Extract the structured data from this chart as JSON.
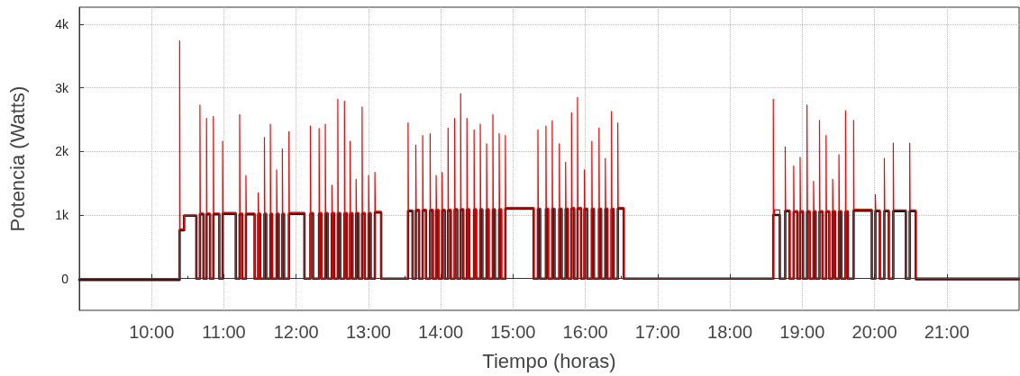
{
  "chart_data": {
    "type": "step",
    "xlabel": "Tiempo (horas)",
    "ylabel": "Potencia (Watts)",
    "xlim": [
      9,
      22
    ],
    "ylim": [
      -500,
      4270
    ],
    "xticks": [
      {
        "value": 10,
        "label": "10:00"
      },
      {
        "value": 11,
        "label": "11:00"
      },
      {
        "value": 12,
        "label": "12:00"
      },
      {
        "value": 13,
        "label": "13:00"
      },
      {
        "value": 14,
        "label": "14:00"
      },
      {
        "value": 15,
        "label": "15:00"
      },
      {
        "value": 16,
        "label": "16:00"
      },
      {
        "value": 17,
        "label": "17:00"
      },
      {
        "value": 18,
        "label": "18:00"
      },
      {
        "value": 19,
        "label": "19:00"
      },
      {
        "value": 20,
        "label": "20:00"
      },
      {
        "value": 21,
        "label": "21:00"
      }
    ],
    "yticks": [
      0,
      {
        "value": 1000,
        "label": "1k"
      },
      {
        "value": 2000,
        "label": "2k"
      },
      {
        "value": 3000,
        "label": "3k"
      },
      {
        "value": 4000,
        "label": "4k"
      }
    ],
    "grid": true,
    "marker": "none",
    "line_style": "solid",
    "series": [
      {
        "color": "#008000",
        "x": [
          9.0,
          10.388,
          10.39,
          20.57,
          22.0
        ],
        "values": [
          -25,
          -25,
          null,
          -25,
          -25
        ]
      },
      {
        "color": "#1a1a1a",
        "x": [
          9.0,
          10.388,
          10.45,
          10.619,
          10.669,
          10.718,
          10.76,
          10.809,
          10.855,
          10.937,
          10.983,
          11.165,
          11.218,
          11.255,
          11.305,
          11.425,
          11.475,
          11.503,
          11.561,
          11.586,
          11.643,
          11.668,
          11.73,
          11.759,
          11.809,
          11.833,
          11.9,
          12.114,
          12.197,
          12.234,
          12.317,
          12.349,
          12.403,
          12.435,
          12.494,
          12.527,
          12.576,
          12.609,
          12.668,
          12.701,
          12.746,
          12.779,
          12.829,
          12.862,
          12.912,
          12.949,
          13.002,
          13.031,
          13.089,
          13.176,
          13.548,
          13.61,
          13.655,
          13.7,
          13.75,
          13.796,
          13.853,
          13.891,
          13.936,
          13.969,
          14.019,
          14.056,
          14.101,
          14.139,
          14.192,
          14.229,
          14.275,
          14.312,
          14.362,
          14.394,
          14.461,
          14.49,
          14.547,
          14.576,
          14.634,
          14.663,
          14.721,
          14.75,
          14.808,
          14.837,
          14.894,
          15.285,
          15.344,
          15.375,
          15.455,
          15.486,
          15.542,
          15.574,
          15.64,
          15.673,
          15.727,
          15.759,
          15.809,
          15.846,
          15.892,
          15.941,
          15.987,
          16.025,
          16.09,
          16.119,
          16.189,
          16.219,
          16.276,
          16.305,
          16.362,
          16.392,
          16.449,
          16.531,
          18.6,
          18.69,
          18.765,
          18.826,
          18.882,
          18.932,
          18.971,
          19.012,
          19.066,
          19.103,
          19.157,
          19.186,
          19.239,
          19.281,
          19.33,
          19.375,
          19.421,
          19.455,
          19.508,
          19.541,
          19.599,
          19.632,
          19.711,
          19.962,
          20.012,
          20.074,
          20.136,
          20.198,
          20.26,
          20.434,
          20.487,
          20.57,
          22.0
        ],
        "values": [
          -20,
          760,
          990,
          0,
          1010,
          0,
          1010,
          0,
          1010,
          0,
          1020,
          0,
          1010,
          0,
          1010,
          0,
          1010,
          0,
          1010,
          0,
          1010,
          0,
          1010,
          0,
          1010,
          0,
          1020,
          0,
          1020,
          0,
          1020,
          0,
          1020,
          0,
          1020,
          0,
          1020,
          0,
          1020,
          0,
          1020,
          0,
          1020,
          0,
          1020,
          0,
          1020,
          0,
          1040,
          0,
          1060,
          0,
          1070,
          0,
          1070,
          0,
          1070,
          0,
          1070,
          0,
          1070,
          0,
          1070,
          0,
          1080,
          0,
          1080,
          0,
          1080,
          0,
          1080,
          0,
          1080,
          0,
          1080,
          0,
          1080,
          0,
          1080,
          0,
          1100,
          0,
          1090,
          0,
          1090,
          0,
          1090,
          0,
          1090,
          0,
          1090,
          0,
          1100,
          0,
          1100,
          0,
          1090,
          0,
          1090,
          0,
          1090,
          0,
          1090,
          0,
          1090,
          0,
          1100,
          0,
          1000,
          0,
          1060,
          0,
          1050,
          0,
          1050,
          0,
          1050,
          0,
          1050,
          0,
          1050,
          0,
          1050,
          0,
          1050,
          0,
          1050,
          0,
          1050,
          0,
          1070,
          0,
          1060,
          0,
          1060,
          0,
          1060,
          0,
          1060,
          0,
          0
        ]
      },
      {
        "color": "#ff0000",
        "x": [
          9.0,
          10.388,
          10.394,
          10.45,
          10.619,
          10.669,
          10.675,
          10.718,
          10.76,
          10.766,
          10.809,
          10.855,
          10.861,
          10.937,
          10.983,
          10.989,
          11.165,
          11.218,
          11.224,
          11.255,
          11.305,
          11.311,
          11.425,
          11.475,
          11.481,
          11.503,
          11.561,
          11.567,
          11.586,
          11.643,
          11.649,
          11.668,
          11.73,
          11.736,
          11.759,
          11.809,
          11.815,
          11.833,
          11.9,
          11.906,
          12.114,
          12.197,
          12.203,
          12.234,
          12.317,
          12.323,
          12.349,
          12.403,
          12.409,
          12.435,
          12.494,
          12.5,
          12.527,
          12.576,
          12.582,
          12.609,
          12.668,
          12.674,
          12.701,
          12.746,
          12.752,
          12.779,
          12.829,
          12.835,
          12.862,
          12.912,
          12.918,
          12.949,
          13.002,
          13.008,
          13.031,
          13.089,
          13.095,
          13.176,
          13.548,
          13.554,
          13.61,
          13.655,
          13.661,
          13.7,
          13.75,
          13.756,
          13.796,
          13.853,
          13.859,
          13.891,
          13.936,
          13.942,
          13.969,
          14.019,
          14.025,
          14.056,
          14.101,
          14.107,
          14.139,
          14.192,
          14.198,
          14.229,
          14.275,
          14.281,
          14.312,
          14.362,
          14.368,
          14.394,
          14.461,
          14.467,
          14.49,
          14.547,
          14.553,
          14.576,
          14.634,
          14.64,
          14.663,
          14.721,
          14.727,
          14.75,
          14.808,
          14.814,
          14.837,
          14.894,
          14.9,
          15.285,
          15.344,
          15.35,
          15.375,
          15.455,
          15.461,
          15.486,
          15.542,
          15.548,
          15.574,
          15.64,
          15.646,
          15.673,
          15.727,
          15.733,
          15.759,
          15.809,
          15.815,
          15.846,
          15.892,
          15.898,
          15.941,
          15.987,
          15.993,
          16.025,
          16.09,
          16.096,
          16.119,
          16.189,
          16.195,
          16.219,
          16.276,
          16.282,
          16.305,
          16.362,
          16.368,
          16.392,
          16.449,
          16.455,
          16.531,
          18.6,
          18.606,
          18.62,
          18.69,
          18.765,
          18.771,
          18.826,
          18.882,
          18.888,
          18.932,
          18.971,
          18.977,
          19.012,
          19.066,
          19.072,
          19.103,
          19.157,
          19.163,
          19.186,
          19.239,
          19.245,
          19.281,
          19.33,
          19.336,
          19.375,
          19.421,
          19.427,
          19.455,
          19.508,
          19.514,
          19.541,
          19.599,
          19.605,
          19.632,
          19.711,
          19.717,
          19.962,
          20.012,
          20.018,
          20.074,
          20.136,
          20.142,
          20.198,
          20.26,
          20.266,
          20.434,
          20.487,
          20.493,
          20.57,
          22.0
        ],
        "values": [
          0,
          3740,
          780,
          1000,
          0,
          2730,
          1030,
          0,
          2520,
          1030,
          0,
          2550,
          1030,
          0,
          2160,
          1040,
          0,
          2580,
          1030,
          0,
          1620,
          1030,
          0,
          1350,
          1030,
          0,
          2220,
          1030,
          0,
          2430,
          1030,
          0,
          1710,
          1030,
          0,
          2040,
          1030,
          0,
          2310,
          1040,
          0,
          2400,
          1040,
          0,
          2360,
          1040,
          0,
          2430,
          1040,
          0,
          1470,
          1040,
          0,
          2820,
          1040,
          0,
          2790,
          1040,
          0,
          2160,
          1040,
          0,
          1560,
          1040,
          0,
          2700,
          1040,
          0,
          1620,
          1040,
          0,
          1670,
          1060,
          0,
          2450,
          1080,
          0,
          2100,
          1090,
          0,
          2250,
          1090,
          0,
          2280,
          1090,
          0,
          1620,
          1090,
          0,
          1670,
          1090,
          0,
          2370,
          1090,
          0,
          2520,
          1100,
          0,
          2910,
          1100,
          0,
          2520,
          1100,
          0,
          2340,
          1100,
          0,
          2430,
          1100,
          0,
          2120,
          1100,
          0,
          2580,
          1100,
          0,
          2280,
          1100,
          0,
          2250,
          1120,
          0,
          2340,
          1110,
          0,
          2400,
          1110,
          0,
          2480,
          1110,
          0,
          2120,
          1110,
          0,
          1830,
          1110,
          0,
          2610,
          1120,
          0,
          2850,
          1120,
          0,
          1710,
          1110,
          0,
          2160,
          1110,
          0,
          2370,
          1110,
          0,
          1890,
          1110,
          0,
          2630,
          1110,
          0,
          2450,
          1120,
          0,
          2820,
          1020,
          1080,
          0,
          2070,
          1080,
          0,
          1770,
          1070,
          0,
          1910,
          1070,
          0,
          2730,
          1070,
          0,
          1530,
          1070,
          0,
          2490,
          1070,
          0,
          2250,
          1070,
          0,
          1560,
          1070,
          0,
          1950,
          1070,
          0,
          2640,
          1070,
          0,
          2490,
          1090,
          0,
          1320,
          1080,
          0,
          1890,
          1080,
          0,
          2130,
          1080,
          0,
          2130,
          1080,
          0,
          0
        ]
      }
    ]
  }
}
